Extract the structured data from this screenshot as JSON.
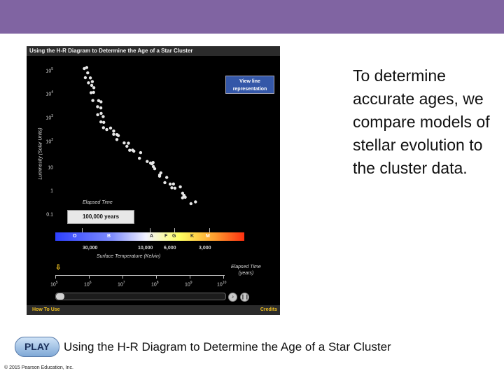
{
  "header_bar_color": "#8064a2",
  "animation": {
    "title": "Using the H-R Diagram to Determine the Age of a Star Cluster",
    "view_button": "View line representation",
    "y_axis_title": "Luminosity (Solar Units)",
    "y_ticks": [
      {
        "base": "10",
        "exp": "5"
      },
      {
        "base": "10",
        "exp": "4"
      },
      {
        "base": "10",
        "exp": "3"
      },
      {
        "base": "10",
        "exp": "2"
      },
      {
        "base": "10",
        "exp": ""
      },
      {
        "base": "1",
        "exp": ""
      },
      {
        "base": "0.1",
        "exp": ""
      }
    ],
    "elapsed_label": "Elapsed Time",
    "elapsed_value": "100,000 years",
    "spectral_classes": [
      "O",
      "B",
      "A",
      "F",
      "G",
      "K",
      "M"
    ],
    "temperatures": [
      "30,000",
      "10,000",
      "6,000",
      "3,000"
    ],
    "temp_title": "Surface Temperature (Kelvin)",
    "time_ticks": [
      {
        "base": "10",
        "exp": "5"
      },
      {
        "base": "10",
        "exp": "6"
      },
      {
        "base": "10",
        "exp": "7"
      },
      {
        "base": "10",
        "exp": "8"
      },
      {
        "base": "10",
        "exp": "9"
      },
      {
        "base": "10",
        "exp": "10"
      }
    ],
    "elapsed_time_title": "Elapsed Time",
    "elapsed_time_unit": "(years)",
    "how_to_use": "How To Use",
    "credits": "Credits"
  },
  "body_text": "To determine accurate ages, we compare models of stellar evolution to the cluster data.",
  "play_button": "PLAY",
  "caption": "Using the H-R Diagram to Determine the Age of a Star Cluster",
  "copyright": "© 2015 Pearson Education, Inc."
}
